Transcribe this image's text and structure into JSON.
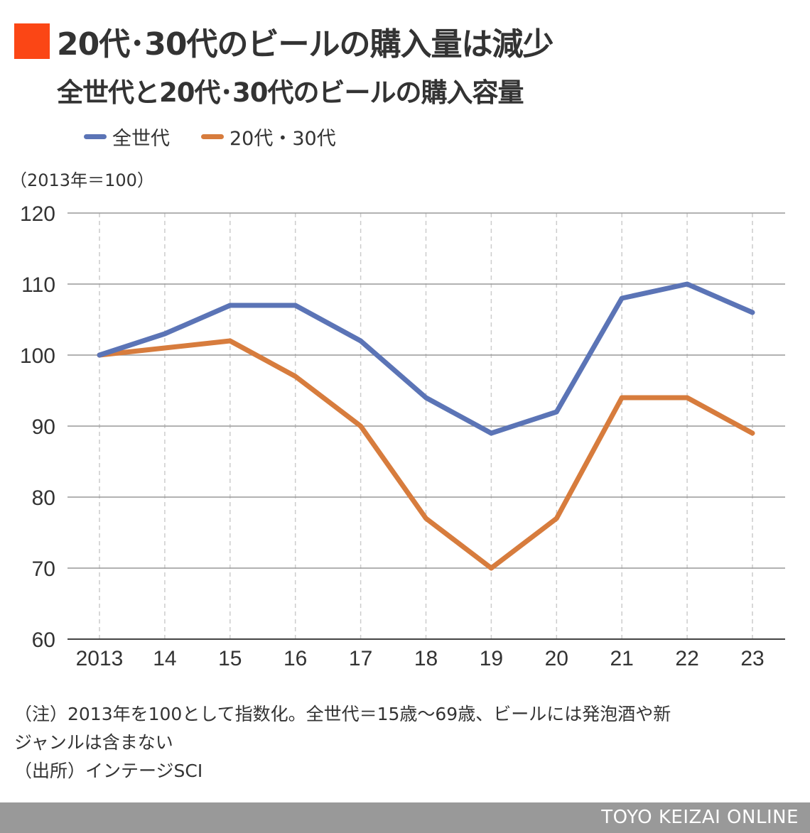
{
  "colors": {
    "accent": "#fb4615",
    "all_generations": "#5b74b6",
    "age_20s_30s": "#d77c3d",
    "grid": "#999999",
    "text": "#333333",
    "footer_bg": "#999999"
  },
  "header": {
    "title": "20代･30代のビールの購入量は減少",
    "subtitle": "全世代と20代･30代のビールの購入容量"
  },
  "legend": {
    "items": [
      {
        "label": "全世代",
        "color": "#5b74b6"
      },
      {
        "label": "20代・30代",
        "color": "#d77c3d"
      }
    ]
  },
  "unit_label": "（2013年＝100）",
  "chart_data": {
    "type": "line",
    "categories": [
      "2013",
      "14",
      "15",
      "16",
      "17",
      "18",
      "19",
      "20",
      "21",
      "22",
      "23"
    ],
    "series": [
      {
        "name": "全世代",
        "color": "#5b74b6",
        "values": [
          100,
          103,
          107,
          107,
          102,
          94,
          89,
          92,
          108,
          110,
          106
        ]
      },
      {
        "name": "20代・30代",
        "color": "#d77c3d",
        "values": [
          100,
          101,
          102,
          97,
          90,
          77,
          70,
          77,
          94,
          94,
          89
        ]
      }
    ],
    "ylim": [
      60,
      120
    ],
    "yticks": [
      60,
      70,
      80,
      90,
      100,
      110,
      120
    ],
    "grid": true,
    "legend_position": "top-left"
  },
  "notes": {
    "line1": "（注）2013年を100として指数化。全世代＝15歳〜69歳、ビールには発泡酒や新",
    "line2": "ジャンルは含まない",
    "line3": "（出所）インテージSCI"
  },
  "footer": {
    "brand": "TOYO KEIZAI ONLINE"
  }
}
